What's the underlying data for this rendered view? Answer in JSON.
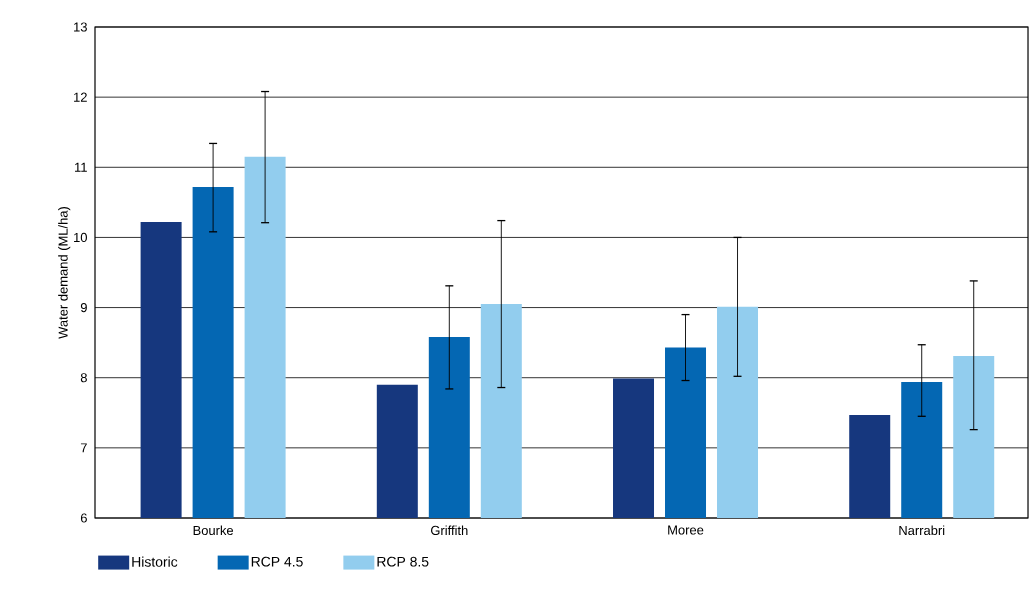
{
  "chart_data": {
    "type": "bar",
    "ylabel": "Water demand (ML/ha)",
    "categories": [
      "Bourke",
      "Griffith",
      "Moree",
      "Narrabri"
    ],
    "series": [
      {
        "name": "Historic",
        "color": "#16377e",
        "values": [
          10.22,
          7.9,
          7.99,
          7.47
        ]
      },
      {
        "name": "RCP 4.5",
        "color": "#0467b3",
        "values": [
          10.72,
          8.58,
          8.43,
          7.94
        ],
        "errors": [
          [
            10.08,
            11.34
          ],
          [
            7.84,
            9.31
          ],
          [
            7.96,
            8.9
          ],
          [
            7.45,
            8.47
          ]
        ]
      },
      {
        "name": "RCP 8.5",
        "color": "#92cdee",
        "values": [
          11.15,
          9.05,
          9.01,
          8.31
        ],
        "errors": [
          [
            10.21,
            12.08
          ],
          [
            7.86,
            10.24
          ],
          [
            8.02,
            10.0
          ],
          [
            7.26,
            9.38
          ]
        ]
      }
    ],
    "ylim": [
      6,
      13
    ],
    "yticks": [
      6,
      7,
      8,
      9,
      10,
      11,
      12,
      13
    ],
    "grid": "y",
    "legend": "bottom left"
  }
}
